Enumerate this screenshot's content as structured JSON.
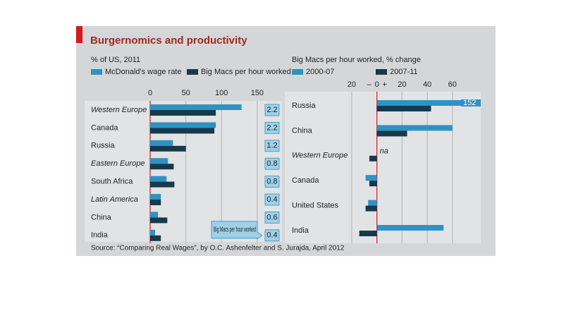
{
  "title": "Burgernomics and productivity",
  "source": "Source: “Comparing Real Wages”, by O.C. Ashenfelter and S. Jurajda, April 2012",
  "chart_data": [
    {
      "type": "bar",
      "orientation": "horizontal",
      "subtitle": "% of US, 2011",
      "categories": [
        "Western Europe",
        "Canada",
        "Russia",
        "Eastern Europe",
        "South Africa",
        "Latin America",
        "China",
        "India"
      ],
      "italic": [
        true,
        false,
        false,
        true,
        false,
        true,
        false,
        false
      ],
      "series": [
        {
          "name": "McDonald's wage rate",
          "color": "#2e93c4",
          "values": [
            128,
            92,
            32,
            25,
            23,
            15,
            11,
            7
          ]
        },
        {
          "name": "Big Macs per hour worked",
          "color": "#17394c",
          "values": [
            92,
            90,
            50,
            33,
            34,
            15,
            24,
            15
          ]
        }
      ],
      "xlim": [
        0,
        160
      ],
      "xticks": [
        0,
        50,
        100,
        150
      ],
      "grid": true,
      "ratio": {
        "label": "Big Macs per hour worked",
        "values": [
          2.2,
          2.2,
          1.2,
          0.8,
          0.8,
          0.4,
          0.6,
          0.4
        ]
      }
    },
    {
      "type": "bar",
      "orientation": "horizontal",
      "subtitle": "Big Macs per hour worked, % change",
      "categories": [
        "Russia",
        "China",
        "Western Europe",
        "Canada",
        "United States",
        "India"
      ],
      "italic": [
        false,
        false,
        true,
        false,
        false,
        false
      ],
      "series": [
        {
          "name": "2000-07",
          "color": "#2e93c4",
          "values": [
            152,
            60,
            null,
            -9,
            -7,
            53
          ],
          "value_labels": [
            "152",
            null,
            null,
            null,
            null,
            null
          ]
        },
        {
          "name": "2007-11",
          "color": "#17394c",
          "values": [
            43,
            24,
            -6,
            -6,
            -9,
            -14
          ]
        }
      ],
      "missing_label": "na",
      "xlim": [
        -25,
        73
      ],
      "xticks": [
        {
          "value": -20,
          "label": "20"
        },
        0,
        20,
        40,
        60
      ],
      "sign_labels": [
        "–",
        "+"
      ],
      "grid": true
    }
  ]
}
